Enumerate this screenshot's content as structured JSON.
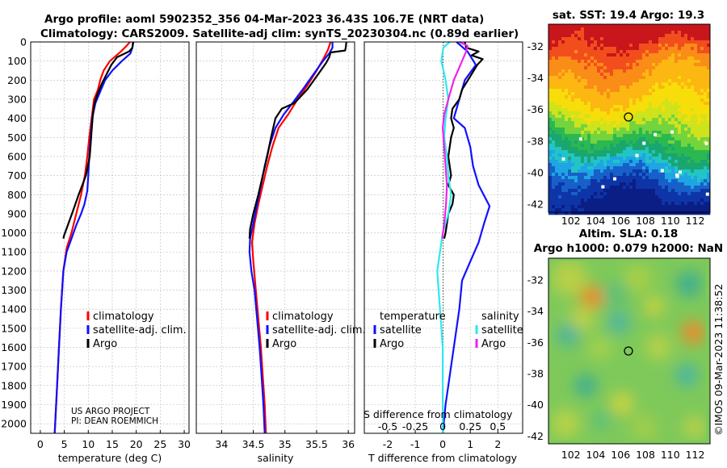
{
  "figure": {
    "title_line1": "Argo profile: aoml 5902352_356 04-Mar-2023 36.43S 106.7E (NRT data)",
    "title_line2": "Climatology: CARS2009. Satellite-adj clim: synTS_20230304.nc (0.89d earlier)",
    "credit_line1": "US ARGO PROJECT",
    "credit_line2": "PI: DEAN ROEMMICH",
    "watermark": "©IMOS 09-Mar-2023 11:38:52",
    "sst_title": "sat. SST: 19.4 Argo: 19.3",
    "sla_title_line1": "Altim. SLA: 0.18",
    "sla_title_line2": "Argo h1000: 0.079 h2000: NaN"
  },
  "colors": {
    "climatology": "#ff0000",
    "satellite": "#1010ff",
    "argo": "#000000",
    "sat_salinity": "#30e8ee",
    "argo_salinity": "#ee22ee"
  },
  "chart_data": [
    {
      "type": "line",
      "xlabel": "temperature (deg C)",
      "ylabel": "",
      "xlim": [
        -2,
        31
      ],
      "ylim": [
        2050,
        0
      ],
      "xticks": [
        "0",
        "5",
        "10",
        "15",
        "20",
        "25",
        "30"
      ],
      "yticks": [
        "0",
        "100",
        "200",
        "300",
        "400",
        "500",
        "600",
        "700",
        "800",
        "900",
        "1000",
        "1100",
        "1200",
        "1300",
        "1400",
        "1500",
        "1600",
        "1700",
        "1800",
        "1900",
        "2000"
      ],
      "legend": [
        "climatology",
        "satellite-adj. clim.",
        "Argo"
      ],
      "legend_position": "lower-center",
      "series": [
        {
          "name": "climatology",
          "color": "#ff0000",
          "points": [
            [
              18.7,
              0
            ],
            [
              18,
              20
            ],
            [
              16.8,
              50
            ],
            [
              14.5,
              100
            ],
            [
              13.2,
              150
            ],
            [
              12.5,
              200
            ],
            [
              12,
              250
            ],
            [
              11.2,
              300
            ],
            [
              10.7,
              400
            ],
            [
              10.2,
              500
            ],
            [
              9.8,
              600
            ],
            [
              9.3,
              700
            ],
            [
              8.5,
              800
            ],
            [
              7.5,
              900
            ],
            [
              6.5,
              1000
            ],
            [
              5.5,
              1080
            ],
            [
              4.8,
              1200
            ],
            [
              4.3,
              1400
            ],
            [
              3.9,
              1600
            ],
            [
              3.5,
              1800
            ],
            [
              3.2,
              1950
            ],
            [
              3,
              2050
            ]
          ]
        },
        {
          "name": "satellite-adj. clim.",
          "color": "#1010ff",
          "points": [
            [
              19.3,
              0
            ],
            [
              19.2,
              30
            ],
            [
              18.8,
              60
            ],
            [
              17,
              100
            ],
            [
              15,
              150
            ],
            [
              13.5,
              200
            ],
            [
              12.5,
              260
            ],
            [
              11.5,
              320
            ],
            [
              10.8,
              400
            ],
            [
              10.5,
              500
            ],
            [
              10.2,
              600
            ],
            [
              10,
              700
            ],
            [
              9.8,
              780
            ],
            [
              9.2,
              850
            ],
            [
              8.5,
              900
            ],
            [
              7.5,
              960
            ],
            [
              6.5,
              1030
            ],
            [
              5.5,
              1100
            ],
            [
              4.8,
              1200
            ],
            [
              4.3,
              1400
            ],
            [
              3.9,
              1600
            ],
            [
              3.5,
              1800
            ],
            [
              3.2,
              1950
            ],
            [
              3,
              2050
            ]
          ]
        },
        {
          "name": "Argo",
          "color": "#000000",
          "points": [
            [
              19.4,
              0
            ],
            [
              19.2,
              30
            ],
            [
              18.5,
              50
            ],
            [
              16,
              80
            ],
            [
              14.8,
              120
            ],
            [
              13.8,
              170
            ],
            [
              12.8,
              220
            ],
            [
              11.8,
              280
            ],
            [
              11.2,
              330
            ],
            [
              10.9,
              400
            ],
            [
              10.6,
              500
            ],
            [
              10.3,
              600
            ],
            [
              9.5,
              700
            ],
            [
              8,
              800
            ],
            [
              6.6,
              900
            ],
            [
              5.6,
              970
            ],
            [
              5,
              1010
            ],
            [
              4.8,
              1030
            ]
          ]
        }
      ]
    },
    {
      "type": "line",
      "xlabel": "salinity",
      "ylabel": "",
      "xlim": [
        33.6,
        36.1
      ],
      "ylim": [
        2050,
        0
      ],
      "xticks": [
        "34",
        "34.5",
        "35",
        "35.5",
        "36"
      ],
      "legend": [
        "climatology",
        "satellite-adj. clim.",
        "Argo"
      ],
      "legend_position": "lower-center",
      "series": [
        {
          "name": "climatology",
          "color": "#ff0000",
          "points": [
            [
              35.72,
              0
            ],
            [
              35.68,
              40
            ],
            [
              35.62,
              80
            ],
            [
              35.5,
              150
            ],
            [
              35.35,
              230
            ],
            [
              35.2,
              300
            ],
            [
              35.05,
              380
            ],
            [
              34.9,
              450
            ],
            [
              34.8,
              550
            ],
            [
              34.72,
              650
            ],
            [
              34.65,
              750
            ],
            [
              34.58,
              850
            ],
            [
              34.52,
              950
            ],
            [
              34.48,
              1050
            ],
            [
              34.5,
              1150
            ],
            [
              34.54,
              1300
            ],
            [
              34.58,
              1450
            ],
            [
              34.62,
              1600
            ],
            [
              34.65,
              1750
            ],
            [
              34.68,
              1900
            ],
            [
              34.7,
              2050
            ]
          ]
        },
        {
          "name": "satellite-adj. clim.",
          "color": "#1010ff",
          "points": [
            [
              35.75,
              0
            ],
            [
              35.75,
              30
            ],
            [
              35.7,
              60
            ],
            [
              35.6,
              100
            ],
            [
              35.45,
              170
            ],
            [
              35.3,
              240
            ],
            [
              35.12,
              320
            ],
            [
              34.98,
              380
            ],
            [
              34.85,
              450
            ],
            [
              34.75,
              550
            ],
            [
              34.68,
              650
            ],
            [
              34.62,
              750
            ],
            [
              34.56,
              850
            ],
            [
              34.5,
              950
            ],
            [
              34.45,
              1030
            ],
            [
              34.44,
              1100
            ],
            [
              34.47,
              1200
            ],
            [
              34.52,
              1300
            ],
            [
              34.56,
              1450
            ],
            [
              34.6,
              1600
            ],
            [
              34.63,
              1750
            ],
            [
              34.66,
              1900
            ],
            [
              34.68,
              2050
            ]
          ]
        },
        {
          "name": "Argo",
          "color": "#000000",
          "points": [
            [
              35.97,
              0
            ],
            [
              35.96,
              30
            ],
            [
              35.95,
              45
            ],
            [
              35.72,
              55
            ],
            [
              35.7,
              80
            ],
            [
              35.65,
              110
            ],
            [
              35.5,
              180
            ],
            [
              35.35,
              250
            ],
            [
              35.15,
              320
            ],
            [
              34.95,
              350
            ],
            [
              34.85,
              400
            ],
            [
              34.78,
              500
            ],
            [
              34.72,
              600
            ],
            [
              34.65,
              700
            ],
            [
              34.58,
              800
            ],
            [
              34.5,
              900
            ],
            [
              34.45,
              980
            ],
            [
              34.44,
              1030
            ]
          ]
        }
      ]
    },
    {
      "type": "line",
      "xlabel": "T difference from climatology",
      "xlabel2": "S difference from climatology",
      "ylabel": "",
      "xlim": [
        -2.85,
        2.9
      ],
      "ylim": [
        2050,
        0
      ],
      "xticks": [
        "-2",
        "-1",
        "0",
        "1",
        "2"
      ],
      "xticks_top": [
        "-0.5",
        "-0.25",
        "0",
        "0.25",
        "0.5"
      ],
      "legend_left_title": "temperature",
      "legend_right_title": "salinity",
      "legend": [
        "satellite",
        "Argo",
        "satellite",
        "Argo"
      ],
      "legend_position": "lower-center",
      "series": [
        {
          "name": "satellite",
          "quantity": "temperature",
          "color": "#1010ff",
          "points": [
            [
              0.5,
              0
            ],
            [
              0.9,
              50
            ],
            [
              1.2,
              120
            ],
            [
              0.8,
              200
            ],
            [
              0.6,
              300
            ],
            [
              0.5,
              350
            ],
            [
              0.4,
              400
            ],
            [
              0.8,
              450
            ],
            [
              1,
              550
            ],
            [
              1.1,
              650
            ],
            [
              1.3,
              750
            ],
            [
              1.7,
              860
            ],
            [
              1.5,
              950
            ],
            [
              1.3,
              1050
            ],
            [
              1,
              1150
            ],
            [
              0.7,
              1250
            ],
            [
              0.6,
              1400
            ],
            [
              0.5,
              1500
            ],
            [
              0.4,
              1600
            ],
            [
              0.3,
              1700
            ],
            [
              0.2,
              1800
            ],
            [
              0.1,
              1900
            ],
            [
              0,
              2050
            ]
          ]
        },
        {
          "name": "Argo",
          "quantity": "temperature",
          "color": "#000000",
          "points": [
            [
              0.8,
              0
            ],
            [
              0.85,
              30
            ],
            [
              1.3,
              50
            ],
            [
              1.05,
              70
            ],
            [
              1.45,
              90
            ],
            [
              1.25,
              120
            ],
            [
              1,
              180
            ],
            [
              0.7,
              250
            ],
            [
              0.6,
              300
            ],
            [
              0.35,
              350
            ],
            [
              0.3,
              400
            ],
            [
              0.4,
              450
            ],
            [
              0.3,
              500
            ],
            [
              0.2,
              600
            ],
            [
              0.3,
              700
            ],
            [
              0.2,
              750
            ],
            [
              0.4,
              800
            ],
            [
              0.35,
              850
            ],
            [
              0.2,
              900
            ],
            [
              0.15,
              950
            ],
            [
              0.1,
              1000
            ],
            [
              0.05,
              1030
            ]
          ]
        },
        {
          "name": "satellite",
          "quantity": "salinity",
          "color": "#30e8ee",
          "points": [
            [
              0.25,
              0
            ],
            [
              0.02,
              30
            ],
            [
              -0.05,
              100
            ],
            [
              0.1,
              200
            ],
            [
              0.2,
              300
            ],
            [
              0.1,
              400
            ],
            [
              0.05,
              500
            ],
            [
              0.15,
              600
            ],
            [
              0.2,
              700
            ],
            [
              0.3,
              800
            ],
            [
              0.2,
              900
            ],
            [
              0,
              1000
            ],
            [
              -0.1,
              1100
            ],
            [
              -0.2,
              1200
            ],
            [
              -0.15,
              1300
            ],
            [
              -0.1,
              1400
            ],
            [
              -0.05,
              1500
            ],
            [
              0,
              1600
            ],
            [
              0,
              1800
            ],
            [
              0,
              2050
            ]
          ]
        },
        {
          "name": "Argo",
          "quantity": "salinity",
          "color": "#ee22ee",
          "points": [
            [
              0.6,
              0
            ],
            [
              0.9,
              20
            ],
            [
              0.85,
              50
            ],
            [
              0.7,
              100
            ],
            [
              0.4,
              200
            ],
            [
              0.2,
              300
            ],
            [
              0.05,
              380
            ],
            [
              0,
              450
            ],
            [
              0.05,
              550
            ],
            [
              0.1,
              650
            ],
            [
              0.15,
              750
            ],
            [
              0.12,
              850
            ],
            [
              0.05,
              950
            ],
            [
              -0.02,
              1030
            ]
          ]
        }
      ]
    },
    {
      "type": "heatmap",
      "title": "sat. SST: 19.4 Argo: 19.3",
      "xlim": [
        100.2,
        113.2
      ],
      "ylim": [
        -42.5,
        -30.6
      ],
      "xticks": [
        "102",
        "104",
        "106",
        "108",
        "110",
        "112"
      ],
      "yticks": [
        "-32",
        "-34",
        "-36",
        "-38",
        "-40",
        "-42"
      ],
      "argo_position": [
        106.8,
        -36.4
      ]
    },
    {
      "type": "heatmap",
      "title": "Altim. SLA: 0.18",
      "xlim": [
        100.2,
        113.2
      ],
      "ylim": [
        -42.5,
        -30.6
      ],
      "xticks": [
        "102",
        "104",
        "106",
        "108",
        "110",
        "112"
      ],
      "yticks": [
        "-32",
        "-34",
        "-36",
        "-38",
        "-40",
        "-42"
      ],
      "argo_position": [
        106.8,
        -36.4
      ]
    }
  ]
}
